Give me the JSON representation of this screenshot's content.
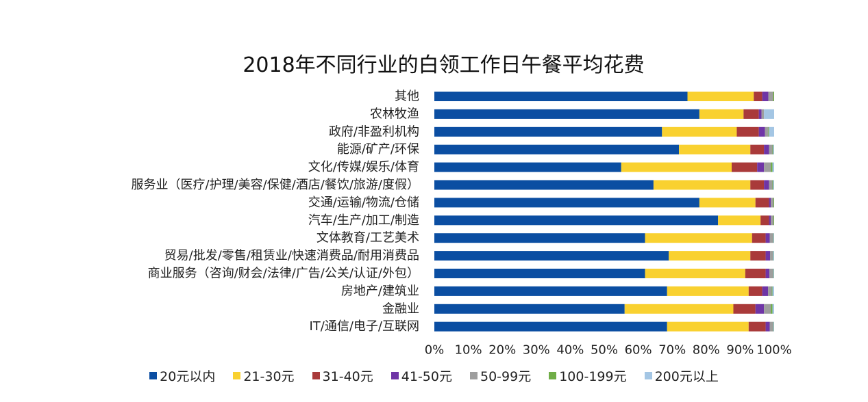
{
  "chart_data": {
    "type": "bar",
    "orientation": "horizontal",
    "stacked": "percent",
    "title": "2018年不同行业的白领工作日午餐平均花费",
    "categories": [
      "其他",
      "农林牧渔",
      "政府/非盈利机构",
      "能源/矿产/环保",
      "文化/传媒/娱乐/体育",
      "服务业（医疗/护理/美容/保健/酒店/餐饮/旅游/度假）",
      "交通/运输/物流/仓储",
      "汽车/生产/加工/制造",
      "文体教育/工艺美术",
      "贸易/批发/零售/租赁业/快速消费品/耐用消费品",
      "商业服务（咨询/财会/法律/广告/公关/认证/外包）",
      "房地产/建筑业",
      "金融业",
      "IT/通信/电子/互联网"
    ],
    "series": [
      {
        "name": "20元以内",
        "color": "#0b4ea2",
        "values": [
          74.5,
          78.0,
          67.0,
          72.0,
          55.0,
          64.5,
          78.0,
          83.5,
          62.0,
          69.0,
          62.0,
          68.5,
          56.0,
          68.5
        ]
      },
      {
        "name": "21-30元",
        "color": "#f9d130",
        "values": [
          19.5,
          13.0,
          22.0,
          21.0,
          32.5,
          28.5,
          16.5,
          12.5,
          31.5,
          24.0,
          29.5,
          24.0,
          32.0,
          24.0
        ]
      },
      {
        "name": "31-40元",
        "color": "#a93a3a",
        "values": [
          2.5,
          4.5,
          6.5,
          4.0,
          7.5,
          4.0,
          4.0,
          2.5,
          4.0,
          4.5,
          6.0,
          4.0,
          6.5,
          5.0
        ]
      },
      {
        "name": "41-50元",
        "color": "#6f35a6",
        "values": [
          1.8,
          0.8,
          1.8,
          1.5,
          2.0,
          1.5,
          0.5,
          0.5,
          1.2,
          1.3,
          1.1,
          1.7,
          2.5,
          1.2
        ]
      },
      {
        "name": "50-99元",
        "color": "#9e9e9e",
        "values": [
          1.4,
          0.7,
          1.0,
          1.0,
          2.0,
          1.0,
          0.8,
          0.8,
          1.0,
          0.8,
          1.1,
          1.1,
          2.0,
          1.0
        ]
      },
      {
        "name": "100-199元",
        "color": "#70ad47",
        "values": [
          0.3,
          0.0,
          0.2,
          0.2,
          0.5,
          0.2,
          0.2,
          0.2,
          0.1,
          0.1,
          0.1,
          0.2,
          0.5,
          0.1
        ]
      },
      {
        "name": "200元以上",
        "color": "#a4c6e4",
        "values": [
          0.0,
          3.0,
          1.5,
          0.3,
          0.5,
          0.3,
          0.0,
          0.0,
          0.2,
          0.3,
          0.2,
          0.5,
          0.5,
          0.2
        ]
      }
    ],
    "xlim": [
      0,
      100
    ],
    "xticks": [
      "0%",
      "10%",
      "20%",
      "30%",
      "40%",
      "50%",
      "60%",
      "70%",
      "80%",
      "90%",
      "100%"
    ],
    "grid": false,
    "legend_position": "bottom"
  }
}
